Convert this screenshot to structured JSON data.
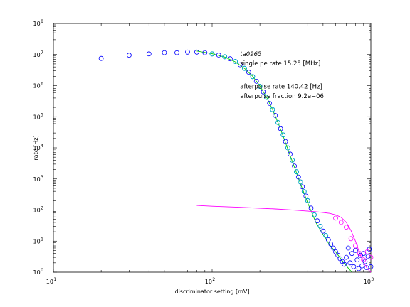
{
  "chart_data": {
    "type": "scatter",
    "title": "",
    "xlabel": "discriminator setting [mV]",
    "ylabel": "rate [Hz]",
    "xscale": "log",
    "yscale": "log",
    "xlim": [
      10,
      1000
    ],
    "ylim": [
      1,
      100000000
    ],
    "x_ticks": [
      {
        "base": "10",
        "exp": "1",
        "value": 10
      },
      {
        "base": "10",
        "exp": "2",
        "value": 100
      },
      {
        "base": "10",
        "exp": "3",
        "value": 1000
      }
    ],
    "y_ticks": [
      {
        "base": "10",
        "exp": "0",
        "value": 1
      },
      {
        "base": "10",
        "exp": "1",
        "value": 10
      },
      {
        "base": "10",
        "exp": "2",
        "value": 100
      },
      {
        "base": "10",
        "exp": "3",
        "value": 1000
      },
      {
        "base": "10",
        "exp": "4",
        "value": 10000
      },
      {
        "base": "10",
        "exp": "5",
        "value": 100000
      },
      {
        "base": "10",
        "exp": "6",
        "value": 1000000
      },
      {
        "base": "10",
        "exp": "7",
        "value": 10000000
      },
      {
        "base": "10",
        "exp": "8",
        "value": 100000000
      }
    ],
    "annotations": [
      {
        "text": "ta0965",
        "italic": true,
        "x": 150,
        "y": 9000000
      },
      {
        "text": "single pe rate 15.25 [MHz]",
        "italic": false,
        "x": 150,
        "y": 4500000
      },
      {
        "text": "afterpulse rate 140.42 [Hz]",
        "italic": false,
        "x": 150,
        "y": 800000
      },
      {
        "text": "afterpulse fraction 9.2e−06",
        "italic": false,
        "x": 150,
        "y": 400000
      }
    ],
    "series": [
      {
        "kind": "markers",
        "marker": "circle",
        "color": "#0000ff",
        "points": [
          [
            20,
            7500000.0
          ],
          [
            30,
            9500000.0
          ],
          [
            40,
            10500000.0
          ],
          [
            50,
            11500000.0
          ],
          [
            60,
            11500000.0
          ],
          [
            70,
            12000000.0
          ],
          [
            80,
            12000000.0
          ],
          [
            90,
            11500000.0
          ],
          [
            100,
            10500000.0
          ],
          [
            110,
            9600000.0
          ],
          [
            120,
            8500000.0
          ],
          [
            130,
            7300000.0
          ],
          [
            140,
            6000000.0
          ],
          [
            150,
            4700000.0
          ],
          [
            160,
            3600000.0
          ],
          [
            170,
            2700000.0
          ],
          [
            180,
            1950000.0
          ],
          [
            190,
            1380000.0
          ],
          [
            200,
            950000.0
          ],
          [
            210,
            630000.0
          ],
          [
            220,
            420000.0
          ],
          [
            230,
            270000.0
          ],
          [
            240,
            170000.0
          ],
          [
            250,
            110000.0
          ],
          [
            260,
            65000.0
          ],
          [
            270,
            41000.0
          ],
          [
            280,
            26000.0
          ],
          [
            290,
            16000.0
          ],
          [
            300,
            10000.0
          ],
          [
            310,
            6300.0
          ],
          [
            320,
            4000.0
          ],
          [
            330,
            2600.0
          ],
          [
            340,
            1700.0
          ],
          [
            350,
            1150.0
          ],
          [
            360,
            800
          ],
          [
            370,
            560
          ],
          [
            380,
            390
          ],
          [
            390,
            280
          ],
          [
            400,
            200
          ],
          [
            420,
            115
          ],
          [
            440,
            70
          ],
          [
            460,
            45
          ],
          [
            480,
            30
          ],
          [
            500,
            21
          ],
          [
            520,
            15
          ],
          [
            540,
            11
          ],
          [
            560,
            8
          ],
          [
            580,
            6
          ],
          [
            600,
            4.5
          ],
          [
            620,
            3.5
          ],
          [
            640,
            2.7
          ],
          [
            660,
            2.2
          ],
          [
            680,
            1.8
          ],
          [
            700,
            3
          ],
          [
            720,
            6
          ],
          [
            740,
            2
          ],
          [
            760,
            4
          ],
          [
            780,
            1.5
          ],
          [
            800,
            5
          ],
          [
            820,
            2.5
          ],
          [
            840,
            1.3
          ],
          [
            860,
            3.5
          ],
          [
            880,
            1.6
          ],
          [
            900,
            4
          ],
          [
            920,
            2.2
          ],
          [
            940,
            1.4
          ],
          [
            960,
            3.2
          ],
          [
            980,
            5.5
          ],
          [
            1000,
            1.5
          ]
        ]
      },
      {
        "kind": "markers",
        "marker": "circle",
        "color": "#00bfbf",
        "points": [
          [
            100,
            10500000.0
          ],
          [
            120,
            8500000.0
          ],
          [
            140,
            6000000.0
          ],
          [
            160,
            3600000.0
          ],
          [
            180,
            1950000.0
          ],
          [
            200,
            950000.0
          ],
          [
            220,
            420000.0
          ],
          [
            240,
            170000.0
          ],
          [
            260,
            65000.0
          ],
          [
            280,
            26000.0
          ],
          [
            300,
            10000.0
          ],
          [
            320,
            4000.0
          ],
          [
            340,
            1700.0
          ],
          [
            360,
            800
          ],
          [
            380,
            390
          ],
          [
            400,
            200
          ],
          [
            440,
            70
          ],
          [
            480,
            30
          ],
          [
            520,
            15
          ]
        ]
      },
      {
        "kind": "markers",
        "marker": "circle",
        "color": "#ff00ff",
        "points": [
          [
            600,
            55
          ],
          [
            650,
            40
          ],
          [
            700,
            28
          ],
          [
            750,
            12
          ],
          [
            800,
            7
          ],
          [
            850,
            4
          ],
          [
            900,
            2.5
          ],
          [
            950,
            4.5
          ],
          [
            1000,
            3
          ]
        ]
      },
      {
        "kind": "line",
        "color": "#00cc00",
        "points": [
          [
            80,
            13000000.0
          ],
          [
            100,
            10600000.0
          ],
          [
            120,
            8300000.0
          ],
          [
            140,
            5800000.0
          ],
          [
            160,
            3600000.0
          ],
          [
            180,
            2000000.0
          ],
          [
            200,
            980000.0
          ],
          [
            220,
            430000.0
          ],
          [
            240,
            172000.0
          ],
          [
            260,
            65000.0
          ],
          [
            280,
            24000.0
          ],
          [
            300,
            9000.0
          ],
          [
            330,
            2400.0
          ],
          [
            360,
            700
          ],
          [
            400,
            170
          ],
          [
            450,
            40
          ],
          [
            500,
            16
          ],
          [
            550,
            7.5
          ],
          [
            600,
            4.5
          ],
          [
            650,
            2.6
          ],
          [
            700,
            1.6
          ],
          [
            760,
            1
          ]
        ]
      },
      {
        "kind": "line",
        "color": "#ff00ff",
        "points": [
          [
            80,
            140
          ],
          [
            100,
            132
          ],
          [
            150,
            122
          ],
          [
            200,
            114
          ],
          [
            250,
            108
          ],
          [
            300,
            102
          ],
          [
            350,
            97
          ],
          [
            400,
            92
          ],
          [
            450,
            88
          ],
          [
            500,
            83
          ],
          [
            550,
            78
          ],
          [
            600,
            70
          ],
          [
            650,
            58
          ],
          [
            700,
            40
          ],
          [
            750,
            22
          ],
          [
            800,
            10
          ],
          [
            850,
            4
          ],
          [
            900,
            2
          ],
          [
            950,
            1.3
          ],
          [
            1000,
            1
          ]
        ]
      }
    ]
  }
}
